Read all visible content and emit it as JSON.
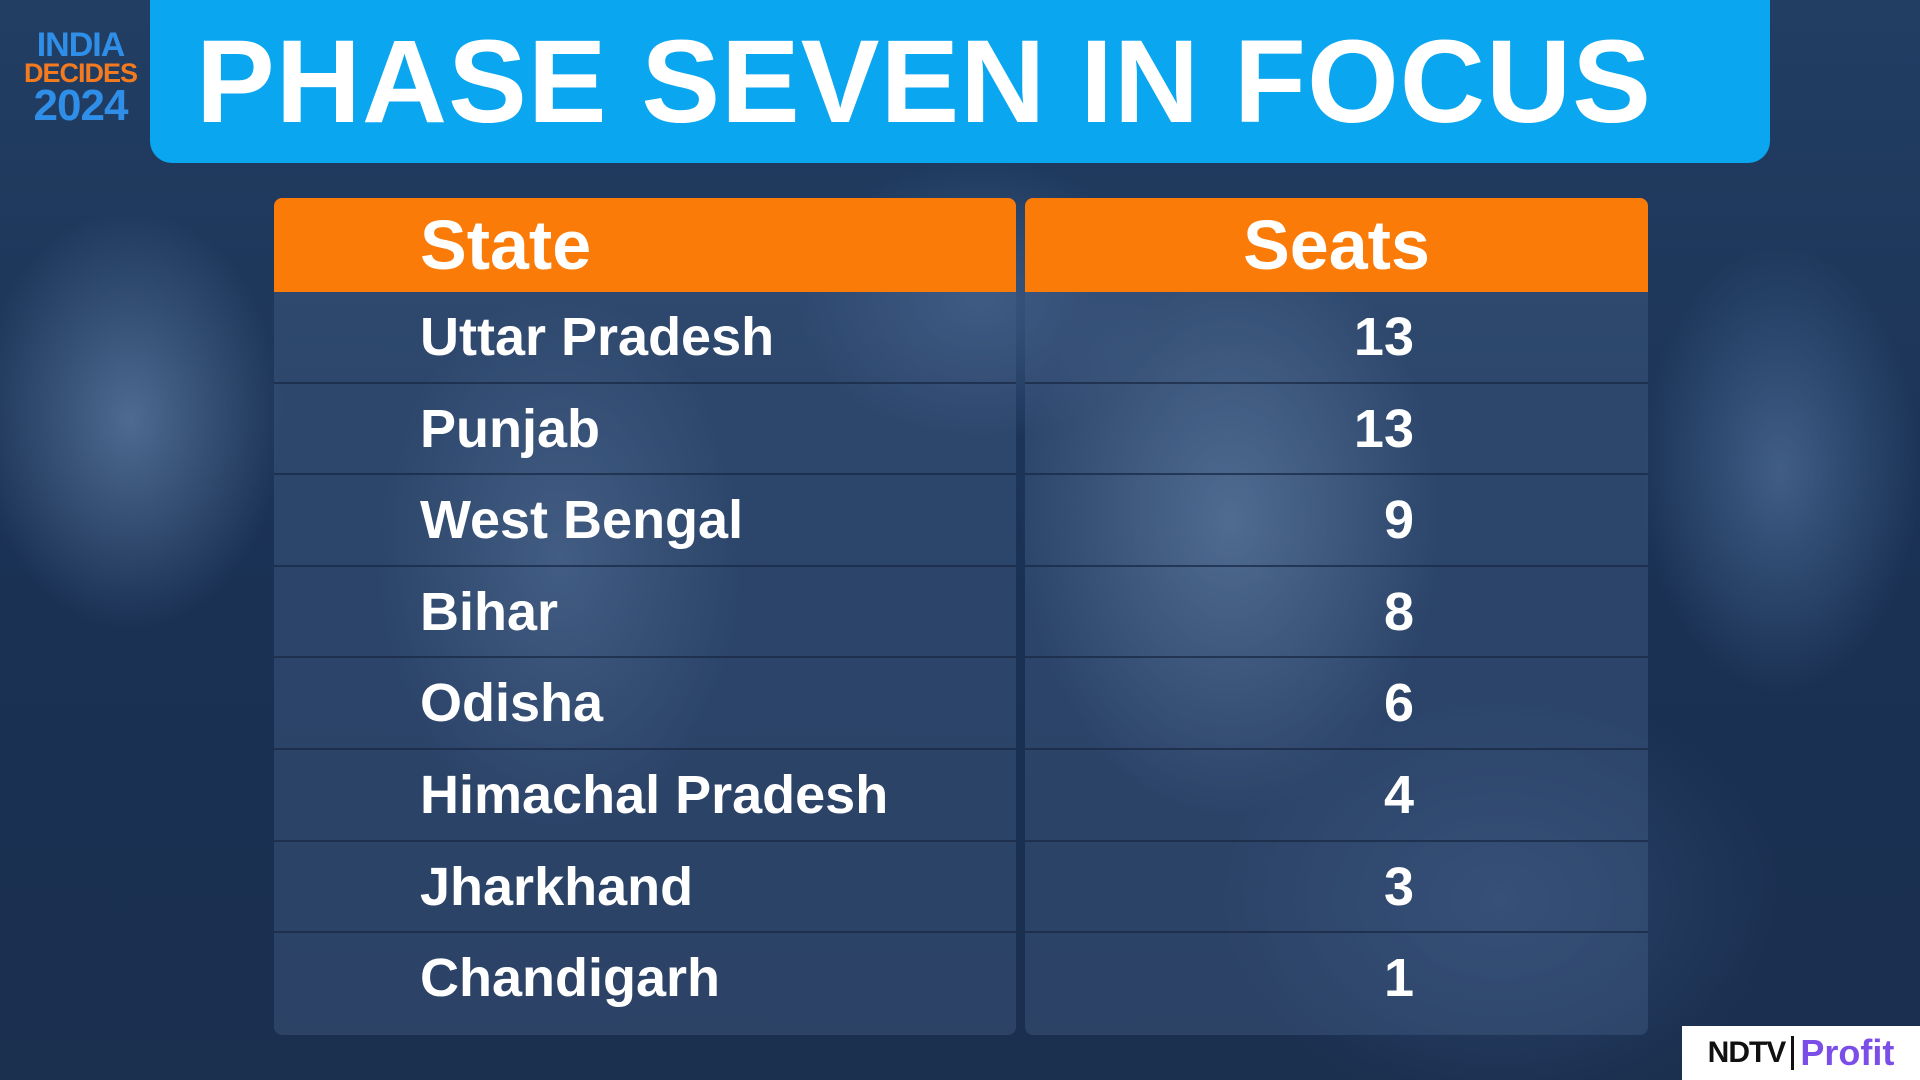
{
  "logo": {
    "line1": "INDIA",
    "line2": "DECIDES",
    "line3": "2024"
  },
  "header": {
    "title": "PHASE SEVEN IN FOCUS"
  },
  "table": {
    "columns": [
      "State",
      "Seats"
    ],
    "rows": [
      {
        "state": "Uttar Pradesh",
        "seats": "13"
      },
      {
        "state": "Punjab",
        "seats": "13"
      },
      {
        "state": "West Bengal",
        "seats": "9"
      },
      {
        "state": "Bihar",
        "seats": "8"
      },
      {
        "state": "Odisha",
        "seats": "6"
      },
      {
        "state": "Himachal Pradesh",
        "seats": "4"
      },
      {
        "state": "Jharkhand",
        "seats": "3"
      },
      {
        "state": "Chandigarh",
        "seats": "1"
      }
    ]
  },
  "brand": {
    "ndtv": "NDTV",
    "profit": "Profit"
  },
  "colors": {
    "header": "#0aa6ef",
    "table_header": "#fb7b08",
    "text": "#ffffff"
  }
}
